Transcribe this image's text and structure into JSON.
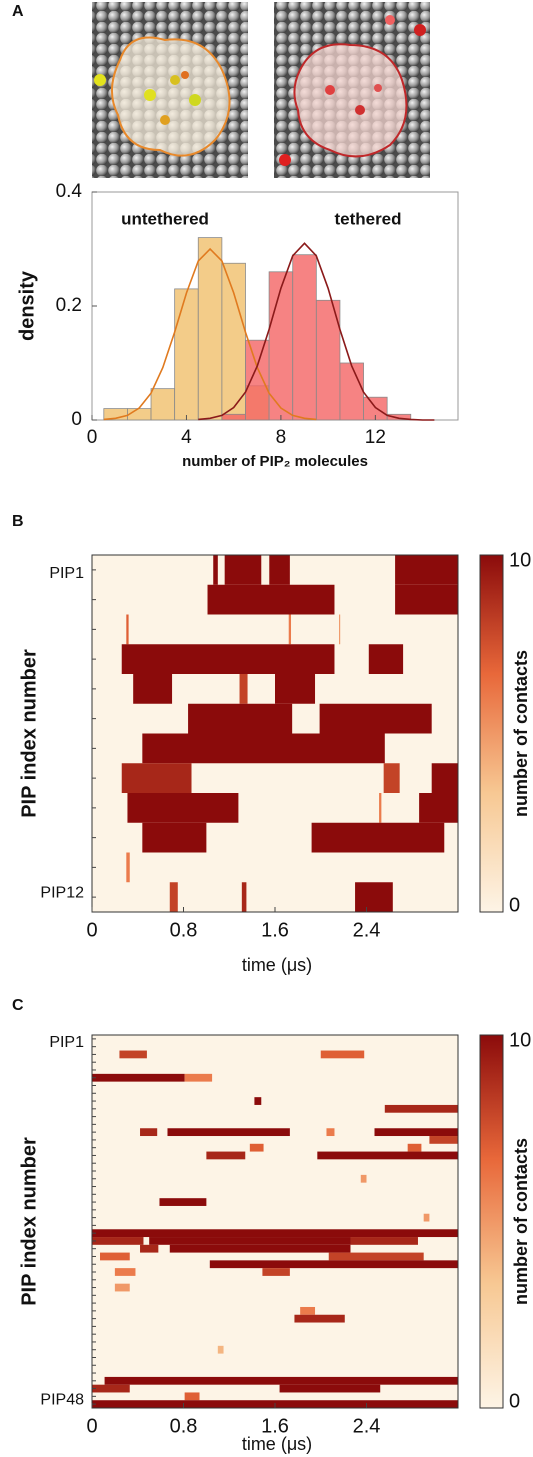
{
  "chart_data": [
    {
      "type": "histogram",
      "panel": "A",
      "xlabel": "number of PIP₂ molecules",
      "ylabel": "density",
      "xlim": [
        0,
        15.5
      ],
      "ylim": [
        0,
        0.4
      ],
      "xticks": [
        0,
        4,
        8,
        12
      ],
      "yticks": [
        0,
        0.2,
        0.4
      ],
      "series": [
        {
          "name": "untethered",
          "color": "#f0bf6c",
          "bins": [
            0.5,
            1.5,
            2.5,
            3.5,
            4.5,
            5.5,
            6.5,
            7.5
          ],
          "values": [
            0.02,
            0.02,
            0.055,
            0.23,
            0.32,
            0.275,
            0.06
          ],
          "fit": {
            "color": "#e07a1f",
            "x": [
              0.5,
              1,
              1.5,
              2,
              2.5,
              3,
              3.5,
              4,
              4.5,
              5,
              5.5,
              6,
              6.5,
              7,
              7.5,
              8,
              8.5,
              9,
              9.5
            ],
            "values": [
              0.001,
              0.003,
              0.008,
              0.021,
              0.047,
              0.092,
              0.154,
              0.223,
              0.279,
              0.3,
              0.279,
              0.223,
              0.154,
              0.092,
              0.047,
              0.021,
              0.008,
              0.003,
              0.001
            ]
          }
        },
        {
          "name": "tethered",
          "color": "#f46464",
          "bins": [
            5.5,
            6.5,
            7.5,
            8.5,
            9.5,
            10.5,
            11.5,
            12.5,
            13.5
          ],
          "values": [
            0.01,
            0.14,
            0.26,
            0.29,
            0.21,
            0.1,
            0.04,
            0.01
          ],
          "fit": {
            "color": "#8b1a1a",
            "x": [
              4.5,
              5,
              5.5,
              6,
              6.5,
              7,
              7.5,
              8,
              8.5,
              9,
              9.5,
              10,
              10.5,
              11,
              11.5,
              12,
              12.5,
              13,
              13.5,
              14,
              14.5
            ],
            "values": [
              0.001,
              0.003,
              0.008,
              0.022,
              0.049,
              0.095,
              0.159,
              0.231,
              0.288,
              0.31,
              0.288,
              0.231,
              0.159,
              0.095,
              0.049,
              0.022,
              0.008,
              0.003,
              0.001,
              0,
              0
            ]
          }
        }
      ]
    },
    {
      "type": "heatmap",
      "panel": "B",
      "xlabel": "time (μs)",
      "ylabel": "PIP index number",
      "colorbar_label": "number of contacts",
      "xlim": [
        0,
        3.2
      ],
      "xticks": [
        0,
        0.8,
        1.6,
        2.4
      ],
      "clim": [
        0,
        10
      ],
      "cticks": [
        0,
        10
      ],
      "colorscale": [
        "#fdf4e6",
        "#f7c893",
        "#e8683a",
        "#8b0b0b"
      ],
      "categories": [
        "PIP1",
        null,
        null,
        null,
        null,
        null,
        null,
        null,
        null,
        null,
        null,
        "PIP12"
      ],
      "rows": [
        [
          [
            1.06,
            1.1,
            10
          ],
          [
            1.16,
            1.48,
            10
          ],
          [
            1.55,
            1.73,
            10
          ],
          [
            2.65,
            3.2,
            10
          ]
        ],
        [
          [
            1.01,
            2.12,
            10
          ],
          [
            2.65,
            3.2,
            10
          ]
        ],
        [
          [
            0.3,
            0.32,
            7
          ],
          [
            1.72,
            1.74,
            6
          ],
          [
            2.16,
            2.17,
            5
          ]
        ],
        [
          [
            0.26,
            2.12,
            10
          ],
          [
            2.42,
            2.72,
            10
          ]
        ],
        [
          [
            0.36,
            0.7,
            10
          ],
          [
            1.29,
            1.36,
            8
          ],
          [
            1.6,
            1.95,
            10
          ]
        ],
        [
          [
            0.84,
            1.75,
            10
          ],
          [
            1.99,
            2.97,
            10
          ]
        ],
        [
          [
            0.44,
            2.56,
            10
          ]
        ],
        [
          [
            0.26,
            0.87,
            9
          ],
          [
            2.55,
            2.69,
            8
          ],
          [
            2.97,
            3.2,
            10
          ]
        ],
        [
          [
            0.31,
            1.28,
            10
          ],
          [
            2.51,
            2.53,
            6
          ],
          [
            2.86,
            3.2,
            10
          ]
        ],
        [
          [
            0.44,
            1.0,
            10
          ],
          [
            1.92,
            3.08,
            10
          ]
        ],
        [
          [
            0.3,
            0.33,
            6
          ]
        ],
        [
          [
            0.68,
            0.75,
            8
          ],
          [
            1.31,
            1.35,
            9
          ],
          [
            2.3,
            2.63,
            10
          ]
        ]
      ]
    },
    {
      "type": "heatmap",
      "panel": "C",
      "xlabel": "time (μs)",
      "ylabel": "PIP index number",
      "colorbar_label": "number of contacts",
      "xlim": [
        0,
        3.2
      ],
      "xticks": [
        0,
        0.8,
        1.6,
        2.4
      ],
      "clim": [
        0,
        10
      ],
      "cticks": [
        0,
        10
      ],
      "colorscale": [
        "#fdf4e6",
        "#f7c893",
        "#e8683a",
        "#8b0b0b"
      ],
      "categories": [
        "PIP1",
        null,
        null,
        null,
        null,
        null,
        null,
        null,
        null,
        null,
        null,
        null,
        null,
        null,
        null,
        null,
        null,
        null,
        null,
        null,
        null,
        null,
        null,
        null,
        null,
        null,
        null,
        null,
        null,
        null,
        null,
        null,
        null,
        null,
        null,
        null,
        null,
        null,
        null,
        null,
        null,
        null,
        null,
        null,
        null,
        null,
        null,
        "PIP48"
      ],
      "rows": [
        [],
        [],
        [
          [
            0.24,
            0.48,
            8
          ],
          [
            2.0,
            2.38,
            7
          ]
        ],
        [],
        [],
        [
          [
            0,
            0.81,
            10
          ],
          [
            0.81,
            1.05,
            6
          ]
        ],
        [],
        [],
        [
          [
            1.42,
            1.48,
            10
          ]
        ],
        [
          [
            2.56,
            3.2,
            9
          ]
        ],
        [],
        [],
        [
          [
            0.42,
            0.57,
            9
          ],
          [
            0.66,
            1.73,
            10
          ],
          [
            2.05,
            2.12,
            6
          ],
          [
            2.47,
            3.2,
            10
          ]
        ],
        [
          [
            2.95,
            3.2,
            8
          ]
        ],
        [
          [
            1.38,
            1.5,
            7
          ],
          [
            2.76,
            2.88,
            7
          ]
        ],
        [
          [
            1.0,
            1.34,
            9
          ],
          [
            1.97,
            3.2,
            10
          ]
        ],
        [],
        [],
        [
          [
            2.35,
            2.4,
            5
          ]
        ],
        [],
        [],
        [
          [
            0.59,
            1.0,
            10
          ]
        ],
        [],
        [
          [
            2.9,
            2.95,
            5
          ]
        ],
        [],
        [
          [
            0,
            3.2,
            10
          ]
        ],
        [
          [
            0,
            0.45,
            9
          ],
          [
            0.5,
            2.26,
            10
          ],
          [
            2.26,
            2.85,
            9
          ]
        ],
        [
          [
            0.42,
            0.58,
            9
          ],
          [
            0.68,
            2.26,
            10
          ]
        ],
        [
          [
            0.07,
            0.33,
            7
          ],
          [
            2.07,
            2.9,
            8
          ]
        ],
        [
          [
            1.03,
            3.2,
            10
          ]
        ],
        [
          [
            0.2,
            0.38,
            6
          ],
          [
            1.49,
            1.73,
            8
          ]
        ],
        [],
        [
          [
            0.2,
            0.33,
            5
          ]
        ],
        [],
        [],
        [
          [
            1.82,
            1.95,
            6
          ]
        ],
        [
          [
            1.77,
            2.21,
            9
          ]
        ],
        [],
        [],
        [],
        [
          [
            1.1,
            1.15,
            4
          ]
        ],
        [],
        [],
        [],
        [
          [
            0.11,
            3.2,
            10
          ]
        ],
        [
          [
            0,
            0.33,
            9
          ],
          [
            1.64,
            2.52,
            10
          ]
        ],
        [
          [
            0.81,
            0.94,
            7
          ]
        ],
        [
          [
            0,
            3.2,
            10
          ]
        ]
      ]
    }
  ]
}
